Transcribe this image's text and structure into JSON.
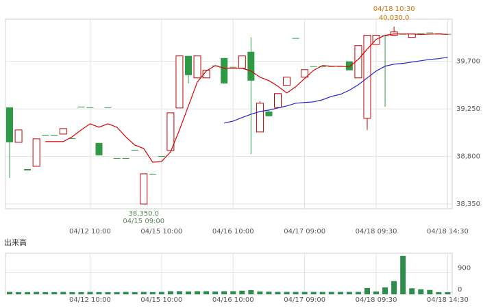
{
  "chart_data": [
    {
      "type": "candlestick",
      "categories": [
        null,
        null,
        null,
        null,
        null,
        null,
        null,
        null,
        null,
        "04/12 10:00",
        null,
        null,
        null,
        null,
        null,
        null,
        null,
        "04/15 10:00",
        null,
        null,
        null,
        null,
        null,
        null,
        null,
        "04/16 10:00",
        null,
        null,
        null,
        null,
        null,
        null,
        null,
        "04/17 09:00",
        null,
        null,
        null,
        null,
        null,
        null,
        null,
        "04/18 09:30",
        null,
        null,
        null,
        null,
        null,
        null,
        null,
        "04/18 14:30"
      ],
      "open": [
        39265,
        38934,
        38681,
        38707,
        39005,
        39005,
        39012,
        38973,
        39272,
        39265,
        38928,
        39265,
        38785,
        38785,
        38863,
        38350,
        38636,
        38804,
        38856,
        39259,
        39752,
        39544,
        39544,
        39661,
        39732,
        39648,
        39635,
        39791,
        39032,
        39226,
        39265,
        39473,
        39921,
        39551,
        39655,
        39655,
        39655,
        39655,
        39700,
        39544,
        39161,
        39862,
        39947,
        39947,
        39960,
        39927,
        39966,
        39973,
        39966,
        39960
      ],
      "high": [
        39265,
        39051,
        38681,
        38967,
        39005,
        39005,
        39064,
        38973,
        39272,
        39265,
        38928,
        39265,
        38785,
        38785,
        38863,
        38636,
        38636,
        38804,
        39213,
        39752,
        39752,
        39752,
        39616,
        39661,
        39732,
        39648,
        39752,
        39927,
        39323,
        39245,
        39395,
        39551,
        39921,
        39622,
        39655,
        39655,
        39655,
        39655,
        39700,
        39849,
        39947,
        39947,
        39947,
        40030,
        39960,
        39960,
        39966,
        39973,
        39966,
        39960
      ],
      "low": [
        38597,
        38934,
        38668,
        38707,
        39005,
        39005,
        39012,
        38973,
        39272,
        39265,
        38811,
        39265,
        38785,
        38785,
        38863,
        38350,
        38636,
        38804,
        38856,
        39259,
        39492,
        39544,
        39544,
        39661,
        39492,
        39648,
        39635,
        38824,
        39032,
        39181,
        39265,
        39473,
        39921,
        39551,
        39655,
        39655,
        39655,
        39655,
        39616,
        39544,
        39051,
        39862,
        39272,
        39947,
        39960,
        39927,
        39966,
        39973,
        39966,
        39960
      ],
      "close": [
        38934,
        39051,
        38668,
        38967,
        39005,
        39005,
        39064,
        38973,
        39272,
        39265,
        38811,
        39265,
        38785,
        38785,
        38863,
        38636,
        38636,
        38804,
        39213,
        39752,
        39570,
        39752,
        39616,
        39661,
        39492,
        39648,
        39752,
        39518,
        39304,
        39181,
        39395,
        39551,
        39921,
        39622,
        39655,
        39655,
        39655,
        39655,
        39616,
        39849,
        39947,
        39947,
        39940,
        39979,
        39960,
        39960,
        39966,
        39973,
        39966,
        39960
      ],
      "up_color": "#c00000",
      "down_color": "#2e9a46",
      "series": [
        {
          "color": "#dd0000",
          "values": [
            null,
            null,
            null,
            null,
            38941,
            38941,
            38941,
            38986,
            39051,
            39109,
            39077,
            39109,
            39077,
            38986,
            38908,
            38876,
            38746,
            38752,
            38843,
            39051,
            39278,
            39505,
            39609,
            39661,
            39635,
            39635,
            39635,
            39609,
            39551,
            39518,
            39466,
            39401,
            39460,
            39538,
            39616,
            39661,
            39655,
            39655,
            39648,
            39719,
            39817,
            39908,
            39947,
            39960,
            39960,
            39960,
            39955,
            39958,
            39960,
            39955
          ]
        },
        {
          "color": "#2222cc",
          "values": [
            null,
            null,
            null,
            null,
            null,
            null,
            null,
            null,
            null,
            null,
            null,
            null,
            null,
            null,
            null,
            null,
            null,
            null,
            null,
            null,
            null,
            null,
            null,
            null,
            39116,
            39135,
            39168,
            39200,
            39226,
            39239,
            39259,
            39278,
            39304,
            39311,
            39317,
            39337,
            39369,
            39388,
            39427,
            39479,
            39544,
            39609,
            39655,
            39674,
            39681,
            39694,
            39706,
            39719,
            39726,
            39739
          ]
        }
      ],
      "ylim": [
        38305,
        40100
      ],
      "yticks": [
        {
          "value": 38350,
          "label": "38,350"
        },
        {
          "value": 38800,
          "label": "38,800"
        },
        {
          "value": 39250,
          "label": "39,250"
        },
        {
          "value": 39700,
          "label": "39,700"
        }
      ],
      "low_annotation": {
        "value": "38,350.0",
        "time": "04/15 09:00",
        "color": "#5a8a5a"
      },
      "high_annotation": {
        "time": "04/18 10:30",
        "value": "40,030.0",
        "color": "#d07000"
      },
      "grid": true
    },
    {
      "type": "bar",
      "title": "出来高",
      "values": [
        100,
        90,
        90,
        100,
        90,
        90,
        100,
        90,
        90,
        100,
        90,
        90,
        90,
        100,
        90,
        100,
        90,
        100,
        130,
        130,
        120,
        130,
        130,
        120,
        130,
        130,
        150,
        175,
        120,
        110,
        100,
        100,
        100,
        100,
        100,
        100,
        100,
        100,
        100,
        100,
        260,
        120,
        290,
        550,
        1600,
        250,
        210,
        180,
        90,
        90
      ],
      "color": "#2e8b4e",
      "ylim": [
        0,
        1710
      ],
      "yticks": [
        0,
        900
      ],
      "grid": true
    }
  ]
}
